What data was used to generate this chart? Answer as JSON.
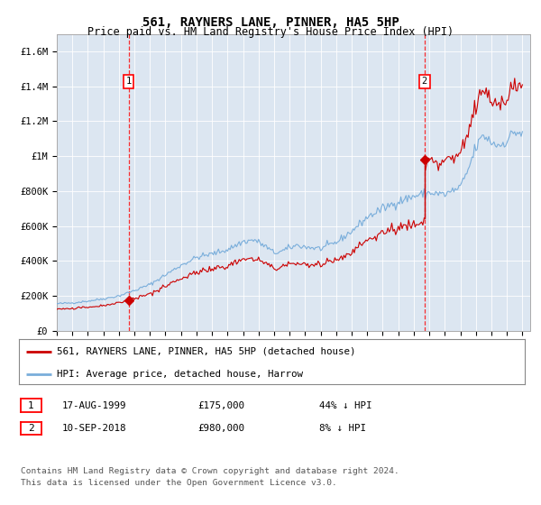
{
  "title": "561, RAYNERS LANE, PINNER, HA5 5HP",
  "subtitle": "Price paid vs. HM Land Registry's House Price Index (HPI)",
  "red_label": "561, RAYNERS LANE, PINNER, HA5 5HP (detached house)",
  "blue_label": "HPI: Average price, detached house, Harrow",
  "sale1_date": "17-AUG-1999",
  "sale1_price": "£175,000",
  "sale1_pct": "44% ↓ HPI",
  "sale2_date": "10-SEP-2018",
  "sale2_price": "£980,000",
  "sale2_pct": "8% ↓ HPI",
  "footer": "Contains HM Land Registry data © Crown copyright and database right 2024.\nThis data is licensed under the Open Government Licence v3.0.",
  "ylim": [
    0,
    1700000
  ],
  "yticks": [
    0,
    200000,
    400000,
    600000,
    800000,
    1000000,
    1200000,
    1400000,
    1600000
  ],
  "ytick_labels": [
    "£0",
    "£200K",
    "£400K",
    "£600K",
    "£800K",
    "£1M",
    "£1.2M",
    "£1.4M",
    "£1.6M"
  ],
  "xmin": 1995.0,
  "xmax": 2025.5,
  "plot_bg": "#dce6f1",
  "red_color": "#cc0000",
  "blue_color": "#7aaedb",
  "sale1_year": 1999.62,
  "sale1_value": 175000,
  "sale2_year": 2018.69,
  "sale2_value": 980000
}
